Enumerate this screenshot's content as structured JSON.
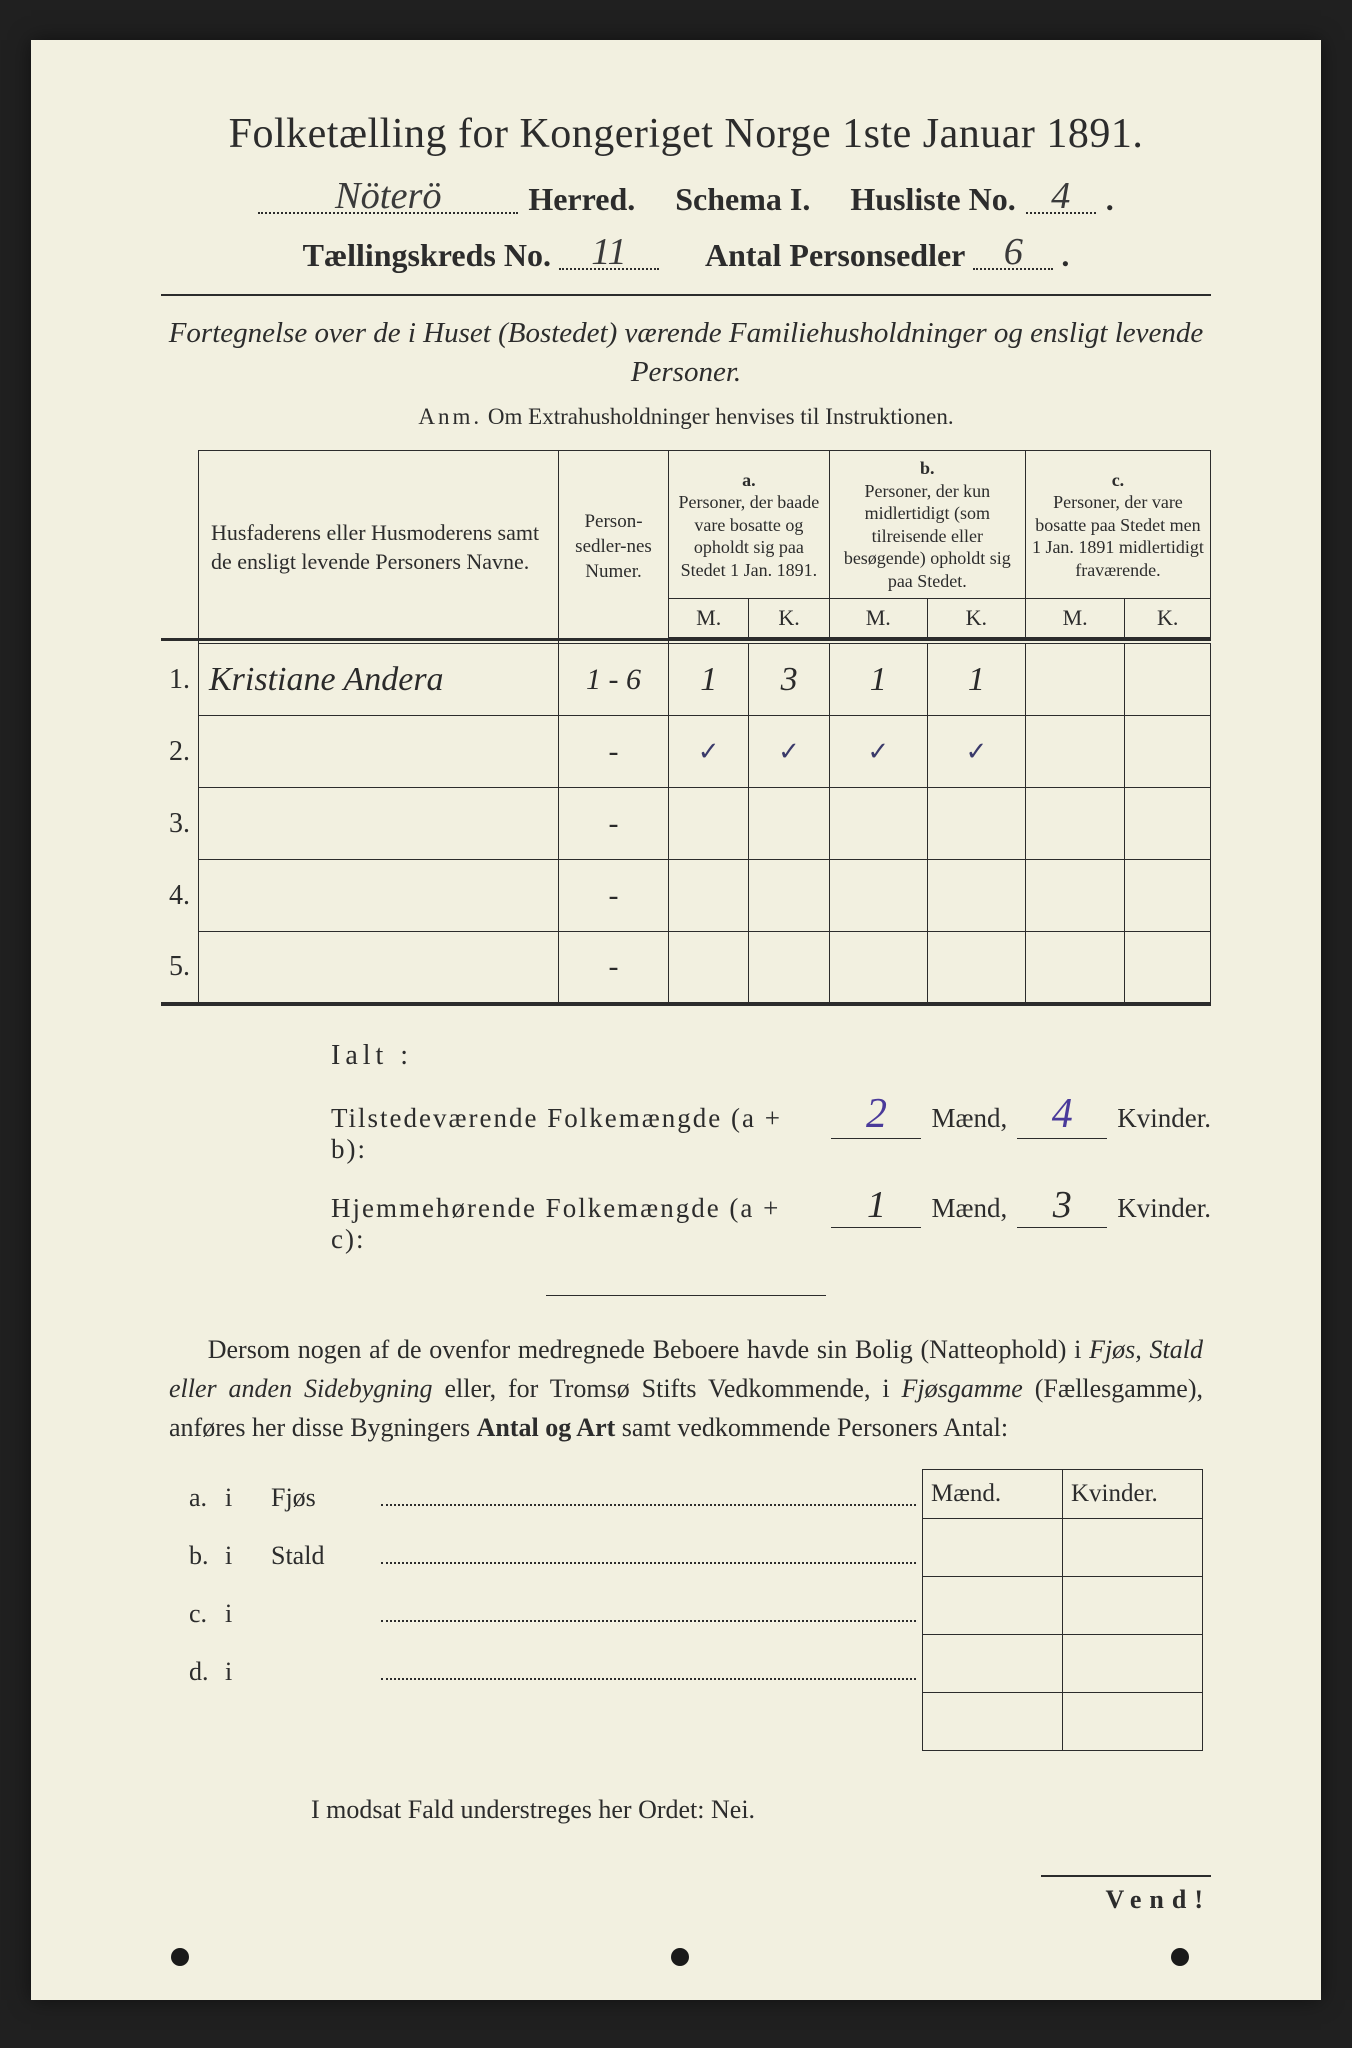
{
  "title": "Folketælling for Kongeriget Norge 1ste Januar 1891.",
  "herred_value": "Nöterö",
  "herred_label": "Herred.",
  "schema_label": "Schema I.",
  "husliste_label": "Husliste No.",
  "husliste_value": "4",
  "kreds_label": "Tællingskreds No.",
  "kreds_value": "11",
  "antal_label": "Antal Personsedler",
  "antal_value": "6",
  "subtitle": "Fortegnelse over de i Huset (Bostedet) værende Familiehusholdninger og ensligt levende Personer.",
  "anm_label": "Anm.",
  "anm_text": "Om Extrahusholdninger henvises til Instruktionen.",
  "col_name": "Husfaderens eller Husmoderens samt de ensligt levende Personers Navne.",
  "col_num": "Person-sedler-nes Numer.",
  "col_a_label": "a.",
  "col_a_text": "Personer, der baade vare bosatte og opholdt sig paa Stedet 1 Jan. 1891.",
  "col_b_label": "b.",
  "col_b_text": "Personer, der kun midlertidigt (som tilreisende eller besøgende) opholdt sig paa Stedet.",
  "col_c_label": "c.",
  "col_c_text": "Personer, der vare bosatte paa Stedet men 1 Jan. 1891 midlertidigt fraværende.",
  "M": "M.",
  "K": "K.",
  "rows": [
    {
      "n": "1.",
      "name": "Kristiane Andera",
      "num": "1 - 6",
      "aM": "1",
      "aK": "3",
      "bM": "1",
      "bK": "1",
      "cM": "",
      "cK": ""
    },
    {
      "n": "2.",
      "name": "",
      "num": "-",
      "aM": "✓",
      "aK": "✓",
      "bM": "✓",
      "bK": "✓",
      "cM": "",
      "cK": ""
    },
    {
      "n": "3.",
      "name": "",
      "num": "-",
      "aM": "",
      "aK": "",
      "bM": "",
      "bK": "",
      "cM": "",
      "cK": ""
    },
    {
      "n": "4.",
      "name": "",
      "num": "-",
      "aM": "",
      "aK": "",
      "bM": "",
      "bK": "",
      "cM": "",
      "cK": ""
    },
    {
      "n": "5.",
      "name": "",
      "num": "-",
      "aM": "",
      "aK": "",
      "bM": "",
      "bK": "",
      "cM": "",
      "cK": ""
    }
  ],
  "ialt": "Ialt :",
  "tilstede_label": "Tilstedeværende Folkemængde (a + b):",
  "hjemme_label": "Hjemmehørende Folkemængde (a + c):",
  "maend": "Mænd,",
  "kvinder": "Kvinder.",
  "tilstede_m": "2",
  "tilstede_k": "4",
  "hjemme_m": "1",
  "hjemme_k": "3",
  "para": "Dersom nogen af de ovenfor medregnede Beboere havde sin Bolig (Natteophold) i Fjøs, Stald eller anden Sidebygning eller, for Tromsø Stifts Vedkommende, i Fjøsgamme (Fællesgamme), anføres her disse Bygningers Antal og Art samt vedkommende Personers Antal:",
  "btm_maend": "Mænd.",
  "btm_kvinder": "Kvinder.",
  "list": [
    {
      "l": "a.",
      "i": "i",
      "nm": "Fjøs"
    },
    {
      "l": "b.",
      "i": "i",
      "nm": "Stald"
    },
    {
      "l": "c.",
      "i": "i",
      "nm": ""
    },
    {
      "l": "d.",
      "i": "i",
      "nm": ""
    }
  ],
  "modsat": "I modsat Fald understreges her Ordet: Nei.",
  "vend": "Vend!",
  "colors": {
    "paper": "#f2f0e0",
    "ink": "#2c2c2c",
    "blueink": "#4a3a9a",
    "background": "#202020"
  }
}
